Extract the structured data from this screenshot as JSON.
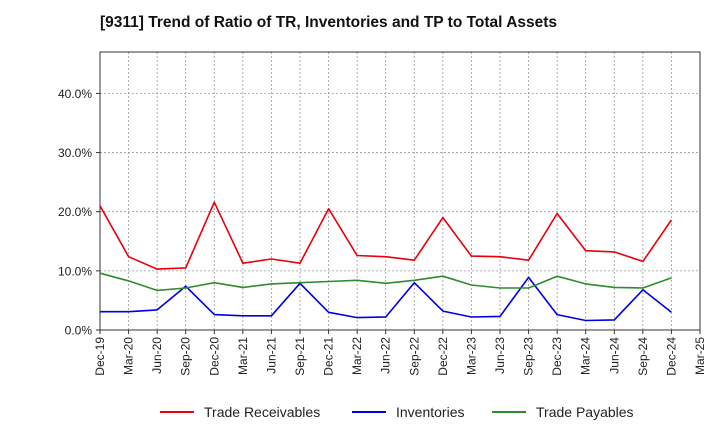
{
  "chart_data": {
    "type": "line",
    "title": "[9311]  Trend of Ratio of TR, Inventories and TP to Total Assets",
    "xlabel": "",
    "ylabel": "",
    "x_tick_labels": [
      "Dec-19",
      "Mar-20",
      "Jun-20",
      "Sep-20",
      "Dec-20",
      "Mar-21",
      "Jun-21",
      "Sep-21",
      "Dec-21",
      "Mar-22",
      "Jun-22",
      "Sep-22",
      "Dec-22",
      "Mar-23",
      "Jun-23",
      "Sep-23",
      "Dec-23",
      "Mar-24",
      "Jun-24",
      "Sep-24",
      "Dec-24",
      "Mar-25"
    ],
    "y_tick_labels": [
      "0.0%",
      "10.0%",
      "20.0%",
      "30.0%",
      "40.0%"
    ],
    "y_ticks": [
      0,
      10,
      20,
      30,
      40
    ],
    "ylim": [
      0,
      47
    ],
    "grid": true,
    "legend_position": "bottom",
    "series": [
      {
        "name": "Trade Receivables",
        "color": "#e8000b",
        "values": [
          21.0,
          12.4,
          10.3,
          10.5,
          21.6,
          11.3,
          12.0,
          11.3,
          20.5,
          12.6,
          12.4,
          11.8,
          19.0,
          12.5,
          12.4,
          11.8,
          19.7,
          13.4,
          13.2,
          11.6,
          18.6
        ]
      },
      {
        "name": "Inventories",
        "color": "#0000e0",
        "values": [
          3.1,
          3.1,
          3.4,
          7.4,
          2.6,
          2.4,
          2.4,
          7.9,
          3.0,
          2.1,
          2.2,
          8.0,
          3.2,
          2.2,
          2.3,
          8.9,
          2.6,
          1.6,
          1.7,
          6.8,
          3.0
        ]
      },
      {
        "name": "Trade Payables",
        "color": "#2e8b2e",
        "values": [
          9.6,
          8.3,
          6.7,
          7.1,
          8.0,
          7.2,
          7.8,
          8.0,
          8.2,
          8.4,
          7.9,
          8.4,
          9.1,
          7.6,
          7.1,
          7.1,
          9.1,
          7.8,
          7.2,
          7.1,
          8.8
        ]
      }
    ]
  }
}
